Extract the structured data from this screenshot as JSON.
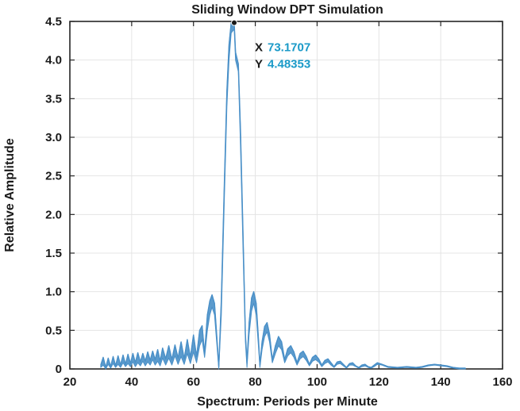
{
  "chart_data": {
    "type": "line",
    "title": "Sliding Window DPT Simulation",
    "xlabel": "Spectrum: Periods per Minute",
    "ylabel": "Relative Amplitude",
    "xlim": [
      20,
      160
    ],
    "ylim": [
      0,
      4.5
    ],
    "xticks": [
      "20",
      "40",
      "60",
      "80",
      "100",
      "120",
      "140",
      "160"
    ],
    "yticks": [
      "0",
      "0.5",
      "1.0",
      "1.5",
      "2.0",
      "2.5",
      "3.0",
      "3.5",
      "4.0",
      "4.5"
    ],
    "grid": true,
    "series_color": "#4a90c8",
    "series": [
      {
        "upper": [
          [
            30,
            0.05
          ],
          [
            30.8,
            0.15
          ],
          [
            31.6,
            0.02
          ],
          [
            32.4,
            0.14
          ],
          [
            33.2,
            0.03
          ],
          [
            34,
            0.16
          ],
          [
            34.8,
            0.04
          ],
          [
            35.6,
            0.17
          ],
          [
            36.4,
            0.05
          ],
          [
            37.2,
            0.18
          ],
          [
            38,
            0.06
          ],
          [
            38.8,
            0.19
          ],
          [
            39.6,
            0.07
          ],
          [
            40.4,
            0.2
          ],
          [
            41.2,
            0.08
          ],
          [
            42,
            0.21
          ],
          [
            42.8,
            0.09
          ],
          [
            43.6,
            0.2
          ],
          [
            44.4,
            0.1
          ],
          [
            45.2,
            0.22
          ],
          [
            46,
            0.11
          ],
          [
            46.8,
            0.23
          ],
          [
            47.6,
            0.12
          ],
          [
            48.4,
            0.25
          ],
          [
            49.2,
            0.1
          ],
          [
            50,
            0.27
          ],
          [
            51,
            0.13
          ],
          [
            52,
            0.3
          ],
          [
            53,
            0.12
          ],
          [
            54,
            0.31
          ],
          [
            55,
            0.14
          ],
          [
            56,
            0.35
          ],
          [
            57,
            0.13
          ],
          [
            58,
            0.38
          ],
          [
            59,
            0.15
          ],
          [
            60,
            0.44
          ],
          [
            61,
            0.16
          ],
          [
            62,
            0.5
          ],
          [
            62.8,
            0.56
          ],
          [
            63.6,
            0.2
          ],
          [
            64.5,
            0.7
          ],
          [
            65.3,
            0.88
          ],
          [
            66,
            0.96
          ],
          [
            66.8,
            0.85
          ],
          [
            67.5,
            0.45
          ],
          [
            68.2,
            0.03
          ],
          [
            69,
            0.9
          ],
          [
            70,
            2.4
          ],
          [
            70.8,
            3.6
          ],
          [
            71.5,
            4.2
          ],
          [
            72.2,
            4.48
          ],
          [
            73.17,
            4.48
          ],
          [
            73.6,
            4.1
          ],
          [
            74.5,
            3.95
          ],
          [
            75.2,
            3.1
          ],
          [
            76,
            1.8
          ],
          [
            76.8,
            0.45
          ],
          [
            77.3,
            0.08
          ],
          [
            78,
            0.6
          ],
          [
            78.8,
            0.92
          ],
          [
            79.5,
            1.0
          ],
          [
            80.3,
            0.85
          ],
          [
            81,
            0.4
          ],
          [
            81.5,
            0.05
          ],
          [
            82.2,
            0.35
          ],
          [
            83,
            0.55
          ],
          [
            83.8,
            0.6
          ],
          [
            84.6,
            0.45
          ],
          [
            85.5,
            0.12
          ],
          [
            86.5,
            0.3
          ],
          [
            87.5,
            0.42
          ],
          [
            88.5,
            0.35
          ],
          [
            89.5,
            0.12
          ],
          [
            90.5,
            0.26
          ],
          [
            91.5,
            0.3
          ],
          [
            92.5,
            0.22
          ],
          [
            93.5,
            0.08
          ],
          [
            94.5,
            0.2
          ],
          [
            95.5,
            0.23
          ],
          [
            96.5,
            0.16
          ],
          [
            97.5,
            0.06
          ],
          [
            98.5,
            0.15
          ],
          [
            99.5,
            0.18
          ],
          [
            100.5,
            0.13
          ],
          [
            101.5,
            0.05
          ],
          [
            102.5,
            0.11
          ],
          [
            103.5,
            0.13
          ],
          [
            104.5,
            0.08
          ],
          [
            105.5,
            0.03
          ],
          [
            106.5,
            0.09
          ],
          [
            107.5,
            0.1
          ],
          [
            108.5,
            0.06
          ],
          [
            109.5,
            0.02
          ],
          [
            110.5,
            0.07
          ],
          [
            111.5,
            0.08
          ],
          [
            112.5,
            0.04
          ],
          [
            113.5,
            0.02
          ],
          [
            114.5,
            0.05
          ],
          [
            115.5,
            0.06
          ],
          [
            116.5,
            0.03
          ],
          [
            117.5,
            0.02
          ],
          [
            118.5,
            0.05
          ],
          [
            119.5,
            0.08
          ],
          [
            121,
            0.06
          ],
          [
            123,
            0.03
          ],
          [
            126,
            0.02
          ],
          [
            129,
            0.03
          ],
          [
            132,
            0.02
          ],
          [
            134,
            0.03
          ],
          [
            136,
            0.05
          ],
          [
            138,
            0.06
          ],
          [
            140,
            0.05
          ],
          [
            142,
            0.04
          ],
          [
            144,
            0.02
          ],
          [
            146,
            0.01
          ],
          [
            148,
            0.01
          ]
        ],
        "lower": [
          [
            30,
            0.02
          ],
          [
            30.8,
            0.05
          ],
          [
            31.6,
            0.0
          ],
          [
            32.4,
            0.06
          ],
          [
            33.2,
            0.01
          ],
          [
            34,
            0.07
          ],
          [
            34.8,
            0.02
          ],
          [
            35.6,
            0.06
          ],
          [
            36.4,
            0.02
          ],
          [
            37.2,
            0.08
          ],
          [
            38,
            0.03
          ],
          [
            38.8,
            0.07
          ],
          [
            39.6,
            0.03
          ],
          [
            40.4,
            0.09
          ],
          [
            41.2,
            0.03
          ],
          [
            42,
            0.08
          ],
          [
            42.8,
            0.04
          ],
          [
            43.6,
            0.1
          ],
          [
            44.4,
            0.04
          ],
          [
            45.2,
            0.09
          ],
          [
            46,
            0.05
          ],
          [
            46.8,
            0.12
          ],
          [
            47.6,
            0.05
          ],
          [
            48.4,
            0.1
          ],
          [
            49.2,
            0.04
          ],
          [
            50,
            0.14
          ],
          [
            51,
            0.05
          ],
          [
            52,
            0.14
          ],
          [
            53,
            0.05
          ],
          [
            54,
            0.17
          ],
          [
            55,
            0.06
          ],
          [
            56,
            0.16
          ],
          [
            57,
            0.06
          ],
          [
            58,
            0.2
          ],
          [
            59,
            0.07
          ],
          [
            60,
            0.22
          ],
          [
            61,
            0.08
          ],
          [
            62,
            0.3
          ],
          [
            62.8,
            0.38
          ],
          [
            63.6,
            0.15
          ],
          [
            64.5,
            0.5
          ],
          [
            65.3,
            0.7
          ],
          [
            66,
            0.8
          ],
          [
            66.8,
            0.7
          ],
          [
            67.5,
            0.35
          ],
          [
            68.2,
            0.0
          ],
          [
            69,
            0.7
          ],
          [
            70,
            2.2
          ],
          [
            70.8,
            3.4
          ],
          [
            71.5,
            4.0
          ],
          [
            72.2,
            4.35
          ],
          [
            73.17,
            4.4
          ],
          [
            73.6,
            4.0
          ],
          [
            74.5,
            3.85
          ],
          [
            75.2,
            2.9
          ],
          [
            76,
            1.6
          ],
          [
            76.8,
            0.35
          ],
          [
            77.3,
            0.02
          ],
          [
            78,
            0.45
          ],
          [
            78.8,
            0.75
          ],
          [
            79.5,
            0.85
          ],
          [
            80.3,
            0.7
          ],
          [
            81,
            0.3
          ],
          [
            81.5,
            0.02
          ],
          [
            82.2,
            0.25
          ],
          [
            83,
            0.42
          ],
          [
            83.8,
            0.48
          ],
          [
            84.6,
            0.35
          ],
          [
            85.5,
            0.08
          ],
          [
            86.5,
            0.2
          ],
          [
            87.5,
            0.3
          ],
          [
            88.5,
            0.25
          ],
          [
            89.5,
            0.08
          ],
          [
            90.5,
            0.17
          ],
          [
            91.5,
            0.21
          ],
          [
            92.5,
            0.15
          ],
          [
            93.5,
            0.05
          ],
          [
            94.5,
            0.13
          ],
          [
            95.5,
            0.16
          ],
          [
            96.5,
            0.11
          ],
          [
            97.5,
            0.04
          ],
          [
            98.5,
            0.1
          ],
          [
            99.5,
            0.12
          ],
          [
            100.5,
            0.09
          ],
          [
            101.5,
            0.03
          ],
          [
            102.5,
            0.07
          ],
          [
            103.5,
            0.09
          ],
          [
            104.5,
            0.05
          ],
          [
            105.5,
            0.02
          ],
          [
            106.5,
            0.06
          ],
          [
            107.5,
            0.07
          ],
          [
            108.5,
            0.04
          ],
          [
            109.5,
            0.01
          ],
          [
            110.5,
            0.05
          ],
          [
            111.5,
            0.05
          ],
          [
            112.5,
            0.03
          ],
          [
            113.5,
            0.01
          ],
          [
            114.5,
            0.03
          ],
          [
            115.5,
            0.04
          ],
          [
            116.5,
            0.02
          ],
          [
            117.5,
            0.01
          ],
          [
            118.5,
            0.03
          ],
          [
            119.5,
            0.06
          ],
          [
            121,
            0.05
          ],
          [
            123,
            0.02
          ],
          [
            126,
            0.01
          ],
          [
            129,
            0.02
          ],
          [
            132,
            0.01
          ],
          [
            134,
            0.02
          ],
          [
            136,
            0.04
          ],
          [
            138,
            0.05
          ],
          [
            140,
            0.04
          ],
          [
            142,
            0.03
          ],
          [
            144,
            0.01
          ],
          [
            146,
            0.0
          ],
          [
            148,
            0.0
          ]
        ]
      }
    ],
    "datatip": {
      "x": 73.1707,
      "y": 4.48353,
      "x_key": "X",
      "y_key": "Y",
      "x_text": "73.1707",
      "y_text": "4.48353",
      "value_color": "#1a9ac8"
    }
  }
}
